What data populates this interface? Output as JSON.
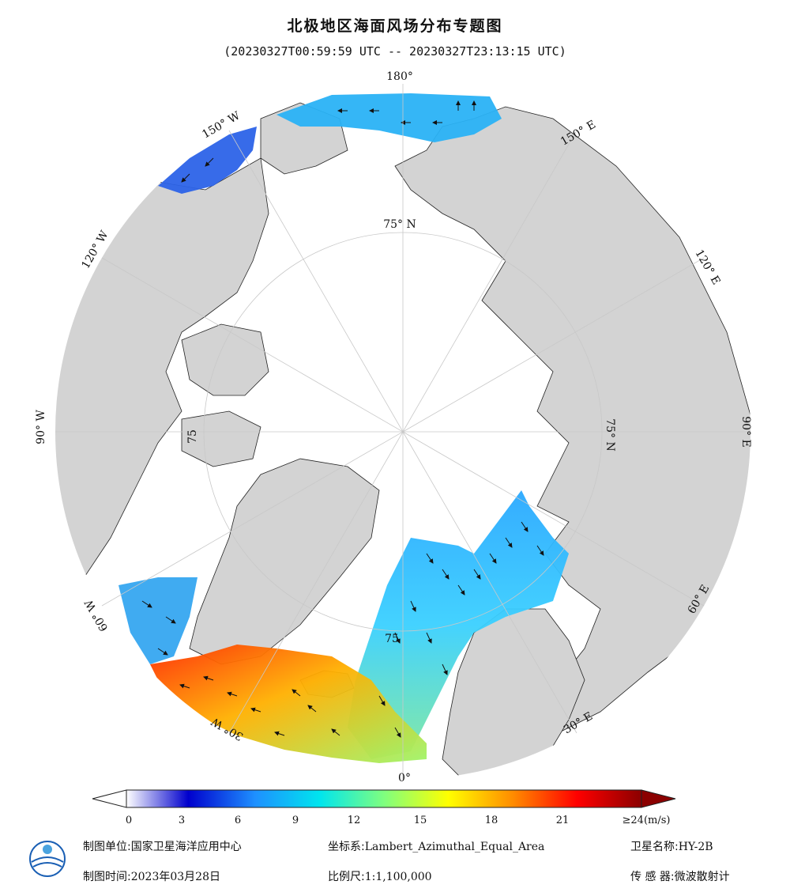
{
  "header": {
    "title": "北极地区海面风场分布专题图",
    "time_range": "(20230327T00:59:59 UTC -- 20230327T23:13:15 UTC)"
  },
  "map": {
    "projection": "Lambert_Azimuthal_Equal_Area",
    "ocean_color": "#ffffff",
    "land_color": "#d3d3d3",
    "longitude_labels": {
      "top": "180°",
      "e150": "150° E",
      "e120": "120° E",
      "e90": "90° E",
      "e60": "60° E",
      "e30": "30° E",
      "bottom": "0°",
      "w30": "30° W",
      "w60": "60° W",
      "w90": "90° W",
      "w120": "120° W",
      "w150": "150° W"
    },
    "latitude_labels": {
      "north": "75° N",
      "east": "75° N",
      "west": "75",
      "south": "75"
    }
  },
  "colorbar": {
    "unit_label": "≥24(m/s)",
    "ticks": [
      "0",
      "3",
      "6",
      "9",
      "12",
      "15",
      "18",
      "21"
    ],
    "tick_values": [
      0,
      3,
      6,
      9,
      12,
      15,
      18,
      21
    ],
    "min": 0,
    "max": 24,
    "colors": [
      "#ffffff",
      "#0000cd",
      "#1e90ff",
      "#00e5ee",
      "#7fff7f",
      "#ffff00",
      "#ff8c00",
      "#ff0000",
      "#8b0000"
    ]
  },
  "footer": {
    "producer_label": "制图单位:",
    "producer_value": "国家卫星海洋应用中心",
    "crs_label": "坐标系:",
    "crs_value": "Lambert_Azimuthal_Equal_Area",
    "satellite_label": "卫星名称:",
    "satellite_value": "HY-2B",
    "date_label": "制图时间:",
    "date_value": "2023年03月28日",
    "scale_label": "比例尺:",
    "scale_value": "1:1,100,000",
    "sensor_label": "传 感 器:",
    "sensor_value": "微波散射计"
  },
  "logo": {
    "icon": "nsoas-globe-logo"
  }
}
